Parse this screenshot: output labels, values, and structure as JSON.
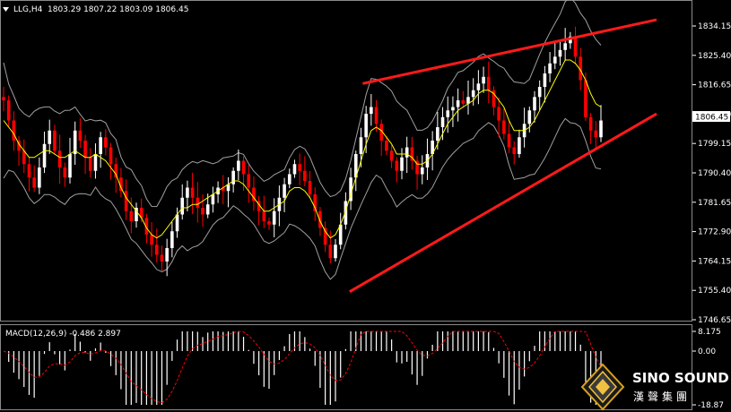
{
  "header": {
    "symbol": "LLG,H4",
    "ohlc": "1803.29 1807.22 1803.09 1806.45",
    "dropdown_icon": "triangle-down-icon"
  },
  "price_axis": {
    "ticks": [
      "1834.15",
      "1825.40",
      "1816.65",
      "1807.90",
      "1799.15",
      "1790.40",
      "1781.65",
      "1772.90",
      "1764.15",
      "1755.40",
      "1746.65"
    ],
    "current_price_label": "1806.45"
  },
  "macd": {
    "label": "MACD(12,26,9) -0.486 2.897",
    "ticks": [
      "8.175",
      "0.00",
      "-18.87"
    ]
  },
  "logo": {
    "name": "SINO SOUND",
    "cn": "漢聲集團",
    "icon": "diamond-emblem-icon"
  },
  "colors": {
    "bull": "#ffffff",
    "bear": "#ff0000",
    "doji": "#00ff00",
    "trendline": "#ff1a1a",
    "ma": "#ffff00",
    "bands": "#a0a0a0",
    "macd_hist": "#ffffff",
    "macd_signal": "#ff0000"
  },
  "chart_data": {
    "type": "line",
    "series": [
      {
        "name": "",
        "y": [
          1812,
          1806,
          1800,
          1797,
          1793,
          1789,
          1786,
          1792,
          1799,
          1803,
          1797,
          1792,
          1789,
          1796,
          1803,
          1800,
          1795,
          1791,
          1796,
          1801,
          1798,
          1793,
          1789,
          1785,
          1779,
          1776,
          1780,
          1777,
          1772,
          1769,
          1766,
          1764,
          1768,
          1773,
          1778,
          1783,
          1786,
          1783,
          1780,
          1778,
          1781,
          1784,
          1786,
          1785,
          1787,
          1791,
          1794,
          1790,
          1786,
          1782,
          1779,
          1776,
          1775,
          1779,
          1783,
          1787,
          1790,
          1793,
          1791,
          1788,
          1784,
          1779,
          1774,
          1769,
          1765,
          1769,
          1775,
          1782,
          1789,
          1796,
          1801,
          1808,
          1810,
          1805,
          1800,
          1797,
          1794,
          1791,
          1795,
          1798,
          1794,
          1790,
          1792,
          1796,
          1800,
          1804,
          1807,
          1809,
          1810,
          1812,
          1811,
          1813,
          1815,
          1817,
          1819,
          1815,
          1810,
          1806,
          1802,
          1798,
          1796,
          1801,
          1805,
          1809,
          1813,
          1816,
          1820,
          1823,
          1825,
          1827,
          1829,
          1831,
          1825,
          1818,
          1807,
          1803,
          1801,
          1806
        ]
      },
      {
        "name": "",
        "y": [
          1806,
          1804,
          1802,
          1799,
          1797,
          1795,
          1795,
          1796,
          1797,
          1797,
          1796,
          1795,
          1795,
          1796,
          1797,
          1796,
          1795,
          1795,
          1796,
          1795,
          1794,
          1792,
          1790,
          1786,
          1783,
          1781,
          1779,
          1777,
          1774,
          1772,
          1771,
          1772,
          1774,
          1776,
          1778,
          1780,
          1780,
          1781,
          1781,
          1782,
          1783,
          1784,
          1785,
          1786,
          1787,
          1788,
          1788,
          1787,
          1785,
          1783,
          1781,
          1779,
          1779,
          1780,
          1781,
          1782,
          1785,
          1786,
          1786,
          1785,
          1783,
          1780,
          1776,
          1773,
          1771,
          1772,
          1775,
          1779,
          1784,
          1789,
          1794,
          1799,
          1803,
          1804,
          1803,
          1801,
          1799,
          1796,
          1796,
          1796,
          1795,
          1793,
          1793,
          1794,
          1796,
          1799,
          1802,
          1805,
          1807,
          1809,
          1810,
          1811,
          1812,
          1814,
          1815,
          1815,
          1814,
          1812,
          1810,
          1806,
          1803,
          1803,
          1803,
          1804,
          1806,
          1809,
          1812,
          1815,
          1818,
          1821,
          1824,
          1824,
          1823,
          1821,
          1818,
          1814,
          1811,
          1810
        ]
      }
    ],
    "trendlines": [
      {
        "name": "",
        "from": [
          55,
          1817
        ],
        "to": [
          100,
          1836
        ]
      },
      {
        "name": "",
        "from": [
          53,
          1755
        ],
        "to": [
          100,
          1808
        ]
      }
    ],
    "ylim": [
      1746.65,
      1834.15
    ],
    "grid": false,
    "title": "",
    "xlabel": "",
    "ylabel": ""
  }
}
